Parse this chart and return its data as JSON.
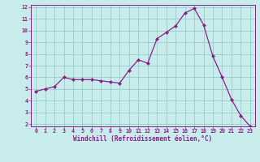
{
  "x": [
    0,
    1,
    2,
    3,
    4,
    5,
    6,
    7,
    8,
    9,
    10,
    11,
    12,
    13,
    14,
    15,
    16,
    17,
    18,
    19,
    20,
    21,
    22,
    23
  ],
  "y": [
    4.8,
    5.0,
    5.2,
    6.0,
    5.8,
    5.8,
    5.8,
    5.7,
    5.6,
    5.5,
    6.6,
    7.5,
    7.2,
    9.3,
    9.85,
    10.4,
    11.5,
    11.9,
    10.5,
    7.8,
    6.0,
    4.1,
    2.7,
    1.8
  ],
  "line_color": "#882288",
  "marker_color": "#882288",
  "bg_color": "#c8ecec",
  "grid_color": "#99cccc",
  "xlabel": "Windchill (Refroidissement éolien,°C)",
  "xlabel_color": "#882288",
  "tick_color": "#882288",
  "ylim": [
    2,
    12
  ],
  "xlim": [
    -0.5,
    23.5
  ],
  "yticks": [
    2,
    3,
    4,
    5,
    6,
    7,
    8,
    9,
    10,
    11,
    12
  ],
  "xticks": [
    0,
    1,
    2,
    3,
    4,
    5,
    6,
    7,
    8,
    9,
    10,
    11,
    12,
    13,
    14,
    15,
    16,
    17,
    18,
    19,
    20,
    21,
    22,
    23
  ]
}
